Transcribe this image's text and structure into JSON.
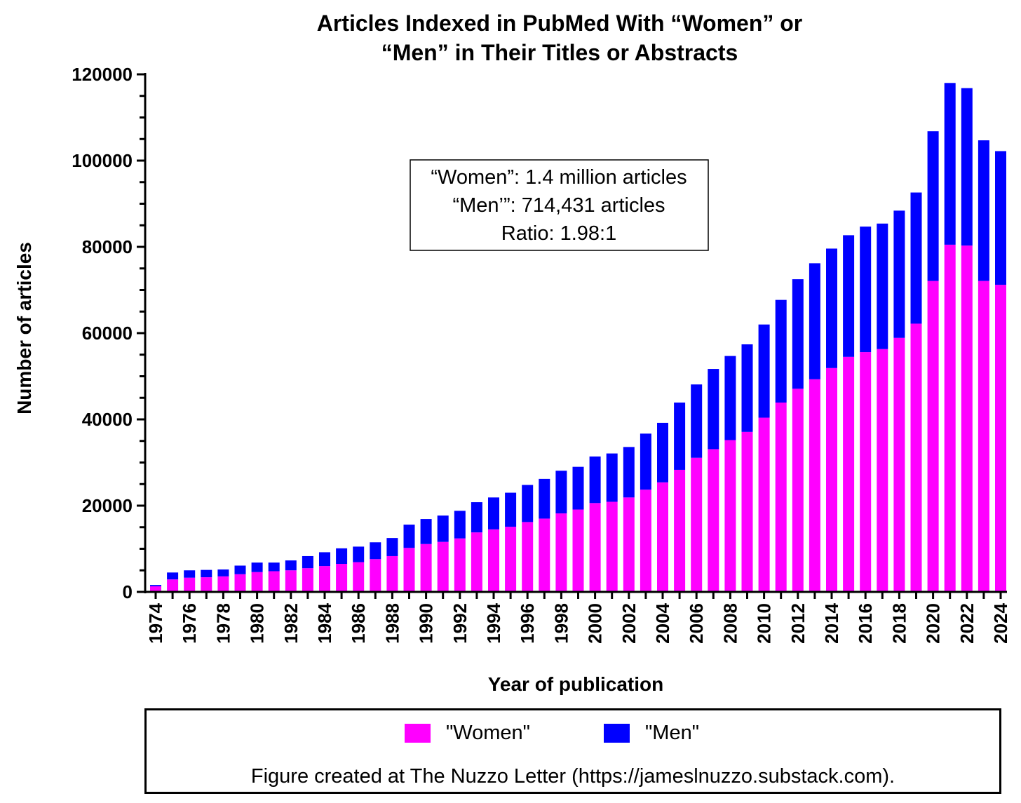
{
  "chart_data": {
    "type": "bar",
    "stacked": true,
    "title": [
      "Articles Indexed in PubMed With “Women” or",
      "“Men” in Their Titles or Abstracts"
    ],
    "xlabel": "Year of publication",
    "ylabel": "Number of articles",
    "ylim": [
      0,
      120000
    ],
    "yticks": [
      "0",
      "20000",
      "40000",
      "60000",
      "80000",
      "100000",
      "120000"
    ],
    "categories": [
      "1974",
      "1975",
      "1976",
      "1977",
      "1978",
      "1979",
      "1980",
      "1981",
      "1982",
      "1983",
      "1984",
      "1985",
      "1986",
      "1987",
      "1988",
      "1989",
      "1990",
      "1991",
      "1992",
      "1993",
      "1994",
      "1995",
      "1996",
      "1997",
      "1998",
      "1999",
      "2000",
      "2001",
      "2002",
      "2003",
      "2004",
      "2005",
      "2006",
      "2007",
      "2008",
      "2009",
      "2010",
      "2011",
      "2012",
      "2013",
      "2014",
      "2015",
      "2016",
      "2017",
      "2018",
      "2019",
      "2020",
      "2021",
      "2022",
      "2023",
      "2024"
    ],
    "series": [
      {
        "name": "\"Women\"",
        "color": "#ff00ff",
        "values": [
          1300,
          2900,
          3300,
          3400,
          3600,
          4100,
          4600,
          4800,
          5000,
          5500,
          6000,
          6500,
          6900,
          7600,
          8300,
          10200,
          11100,
          11600,
          12400,
          13800,
          14500,
          15100,
          16200,
          17000,
          18200,
          19100,
          20600,
          20900,
          21900,
          23700,
          25400,
          28300,
          31100,
          33100,
          35200,
          37100,
          40400,
          43900,
          47100,
          49300,
          51900,
          54500,
          55600,
          56300,
          58900,
          62200,
          72100,
          80500,
          80300,
          72100,
          71200
        ]
      },
      {
        "name": "\"Men\"",
        "color": "#0000ff",
        "values": [
          300,
          1600,
          1700,
          1700,
          1600,
          2000,
          2200,
          2000,
          2300,
          2800,
          3200,
          3600,
          3600,
          3900,
          4200,
          5400,
          5800,
          6100,
          6400,
          7000,
          7400,
          7900,
          8600,
          9200,
          9900,
          9900,
          10800,
          11200,
          11700,
          13000,
          13800,
          15600,
          17000,
          18600,
          19500,
          20300,
          21600,
          23800,
          25400,
          26900,
          27700,
          28200,
          29100,
          29100,
          29500,
          30400,
          34700,
          37500,
          36500,
          32600,
          31000
        ]
      }
    ],
    "annotation": [
      "“Women”: 1.4 million articles",
      "“Men’”: 714,431 articles",
      "Ratio: 1.98:1"
    ]
  },
  "legend": {
    "women_label": "\"Women\"",
    "men_label": "\"Men\"",
    "credit": "Figure created at The Nuzzo Letter (https://jameslnuzzo.substack.com)."
  }
}
